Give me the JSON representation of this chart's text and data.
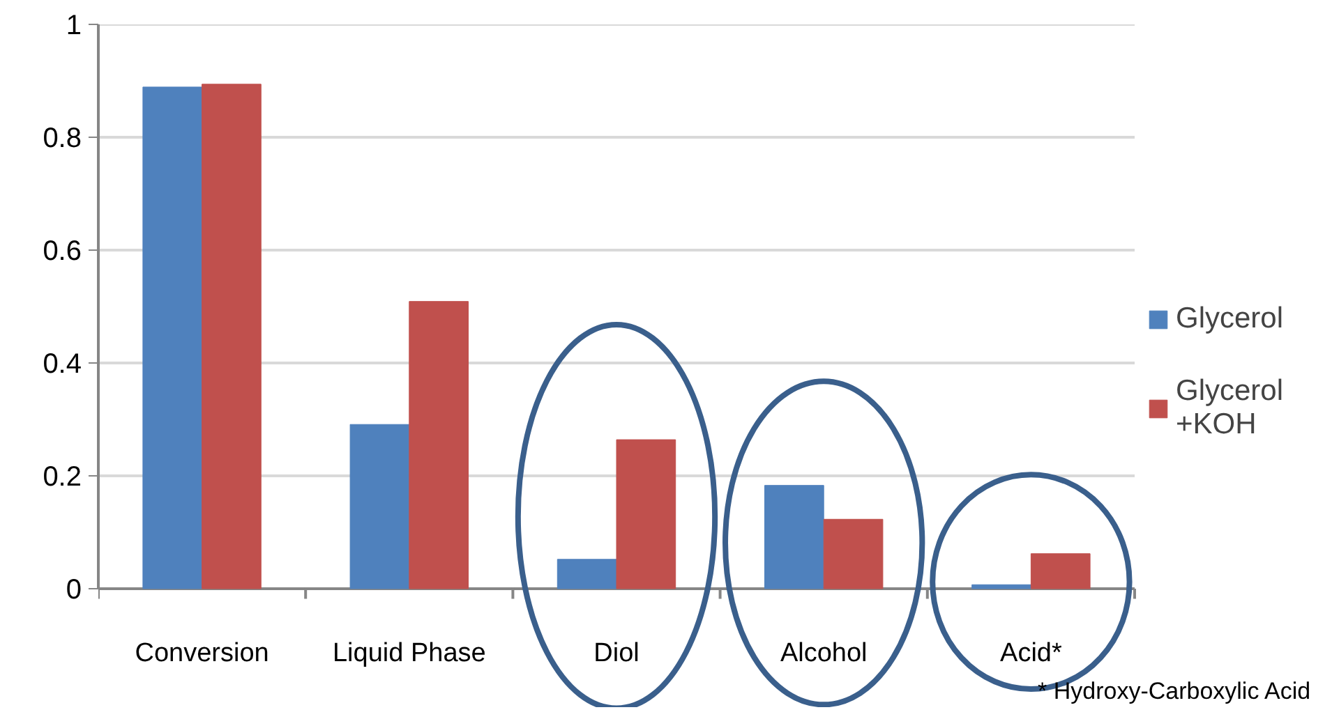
{
  "chart_data": {
    "type": "bar",
    "categories": [
      "Conversion",
      "Liquid Phase",
      "Diol",
      "Alcohol",
      "Acid*"
    ],
    "series": [
      {
        "name": "Glycerol",
        "color": "#4f81bd",
        "values": [
          0.889,
          0.291,
          0.052,
          0.183,
          0.007
        ]
      },
      {
        "name": "Glycerol +KOH",
        "color": "#c0504d",
        "values": [
          0.894,
          0.509,
          0.264,
          0.123,
          0.062
        ]
      }
    ],
    "ylim": [
      0,
      1
    ],
    "yticks": [
      0,
      0.2,
      0.4,
      0.6,
      0.8,
      1
    ],
    "grid": "y",
    "legend": "right",
    "annotations": [
      "* Hydroxy-Carboxylic Acid"
    ]
  }
}
